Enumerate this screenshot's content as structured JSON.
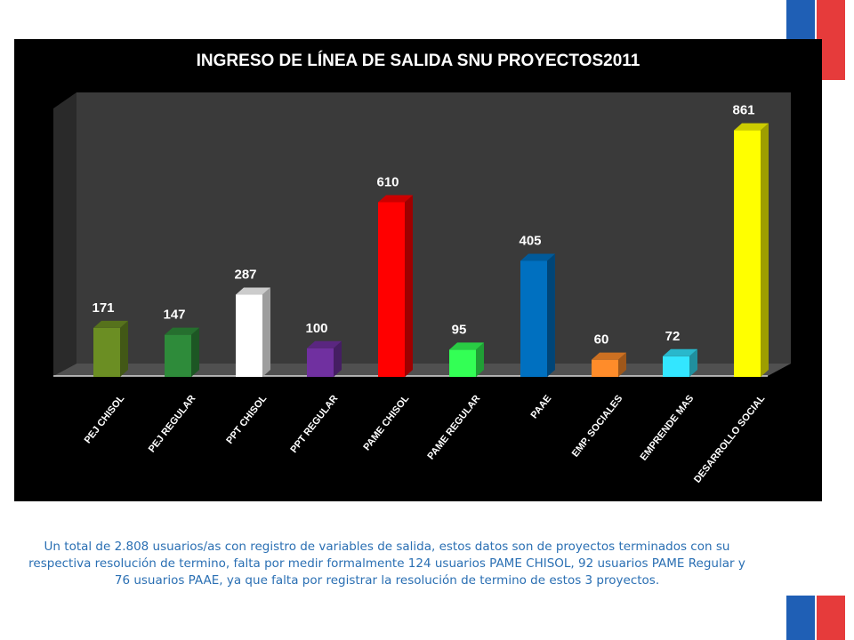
{
  "slide": {
    "caption": "Un total de 2.808 usuarios/as con registro de variables de salida, estos datos son de proyectos terminados con su respectiva resolución de termino, falta por medir formalmente  124 usuarios PAME CHISOL, 92 usuarios PAME Regular y 76 usuarios PAAE, ya que falta por registrar la resolución de termino de estos 3 proyectos."
  },
  "chart_data": {
    "type": "bar",
    "title": "INGRESO DE LÍNEA DE SALIDA SNU PROYECTOS2011",
    "categories": [
      "PEJ CHISOL",
      "PEJ REGULAR",
      "PPT CHISOL",
      "PPT REGULAR",
      "PAME CHISOL",
      "PAME REGULAR",
      "PAAE",
      "EMP. SOCIALES",
      "EMPRENDE MAS",
      "DESARROLLO SOCIAL"
    ],
    "values": [
      171,
      147,
      287,
      100,
      610,
      95,
      405,
      60,
      72,
      861
    ],
    "colors": [
      "#6b8e23",
      "#2e8b3a",
      "#ffffff",
      "#7030a0",
      "#ff0000",
      "#33ff55",
      "#0070c0",
      "#ff8c2a",
      "#33e6ff",
      "#ffff00"
    ],
    "ylim": [
      0,
      900
    ],
    "grid": false,
    "legend": "none",
    "style": "3d-columns",
    "background": "#000000"
  }
}
